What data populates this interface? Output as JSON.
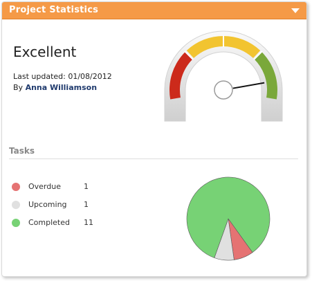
{
  "widget": {
    "title": "Project Statistics"
  },
  "status": {
    "rating": "Excellent",
    "last_updated": "Last updated: 01/08/2012",
    "by_prefix": "By",
    "author": "Anna Williamson"
  },
  "gauge": {
    "level": 0.9,
    "zones": [
      "#cc2a1b",
      "#f2c430",
      "#7aa83a"
    ]
  },
  "tasks": {
    "heading": "Tasks",
    "items": [
      {
        "label": "Overdue",
        "count": "1",
        "color": "#e57373"
      },
      {
        "label": "Upcoming",
        "count": "1",
        "color": "#e0e0e0"
      },
      {
        "label": "Completed",
        "count": "11",
        "color": "#77d275"
      }
    ]
  },
  "chart_data": {
    "type": "pie",
    "categories": [
      "Overdue",
      "Upcoming",
      "Completed"
    ],
    "values": [
      1,
      1,
      11
    ],
    "colors": [
      "#e57373",
      "#e0e0e0",
      "#77d275"
    ]
  }
}
